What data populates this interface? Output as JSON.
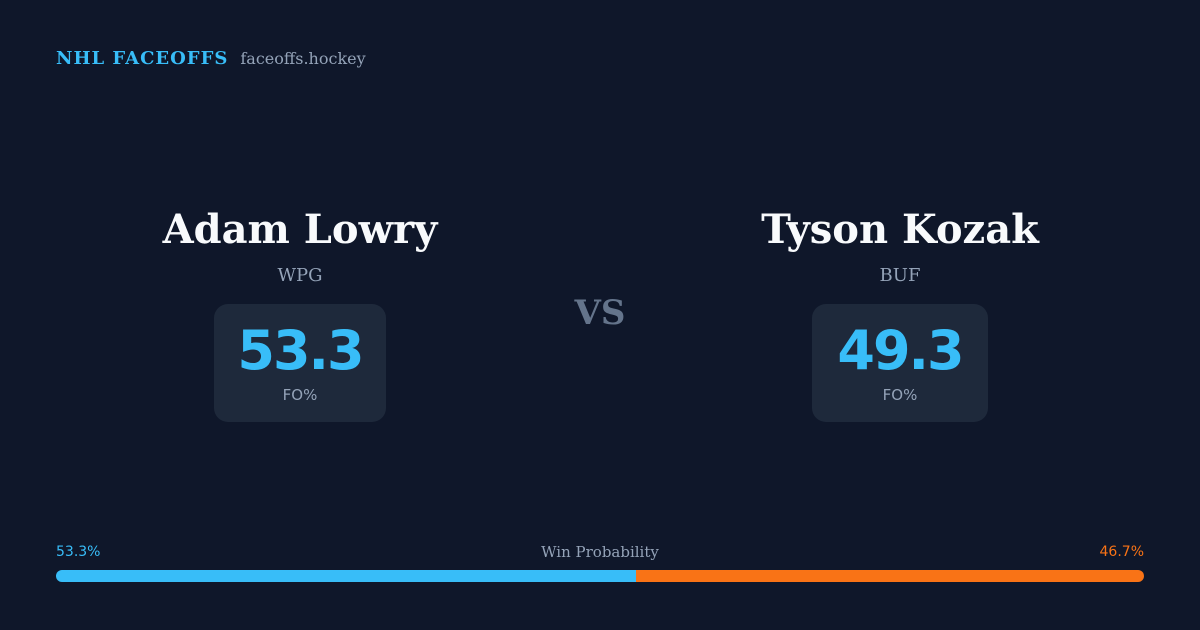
{
  "brand": {
    "name": "NHL FACEOFFS",
    "site": "faceoffs.hockey"
  },
  "matchup": {
    "vs_label": "VS",
    "left": {
      "name": "Adam Lowry",
      "team": "WPG",
      "stat_value": "53.3",
      "stat_label": "FO%"
    },
    "right": {
      "name": "Tyson Kozak",
      "team": "BUF",
      "stat_value": "49.3",
      "stat_label": "FO%"
    }
  },
  "win_probability": {
    "title": "Win Probability",
    "left_label": "53.3%",
    "right_label": "46.7%",
    "left_fraction": 0.533,
    "right_fraction": 0.467,
    "left_color": "#38bdf8",
    "right_color": "#f97316"
  },
  "colors": {
    "background": "#0f172a",
    "card": "#1e293b",
    "accent": "#38bdf8",
    "muted": "#94a3b8"
  }
}
